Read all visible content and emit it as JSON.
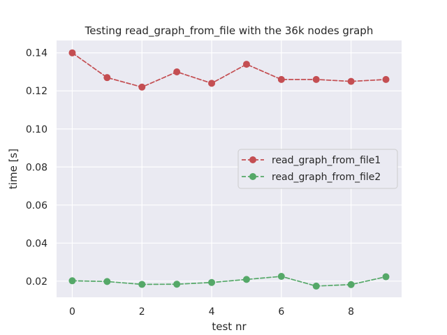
{
  "chart_data": {
    "type": "line",
    "title": "Testing read_graph_from_file with the 36k nodes graph",
    "xlabel": "test nr",
    "ylabel": "time [s]",
    "xlim": [
      -0.45,
      9.45
    ],
    "ylim": [
      0.0115,
      0.1465
    ],
    "xticks": [
      0,
      2,
      4,
      6,
      8
    ],
    "xtick_labels": [
      "0",
      "2",
      "4",
      "6",
      "8"
    ],
    "yticks": [
      0.02,
      0.04,
      0.06,
      0.08,
      0.1,
      0.12,
      0.14
    ],
    "ytick_labels": [
      "0.02",
      "0.04",
      "0.06",
      "0.08",
      "0.10",
      "0.12",
      "0.14"
    ],
    "grid": true,
    "legend_position": "center-right",
    "x": [
      0,
      1,
      2,
      3,
      4,
      5,
      6,
      7,
      8,
      9
    ],
    "series": [
      {
        "name": "read_graph_from_file1",
        "color": "#c44e52",
        "values": [
          0.14,
          0.127,
          0.122,
          0.13,
          0.124,
          0.134,
          0.126,
          0.126,
          0.125,
          0.126
        ]
      },
      {
        "name": "read_graph_from_file2",
        "color": "#55a868",
        "values": [
          0.0202,
          0.0198,
          0.0183,
          0.0184,
          0.0193,
          0.0209,
          0.0225,
          0.0174,
          0.0182,
          0.0223
        ]
      }
    ]
  },
  "style": {
    "plot_background": "#eaeaf2",
    "grid_color": "#ffffff",
    "text_color": "#262626",
    "legend_background": "#eaeaf2",
    "legend_border": "#cccccc"
  }
}
